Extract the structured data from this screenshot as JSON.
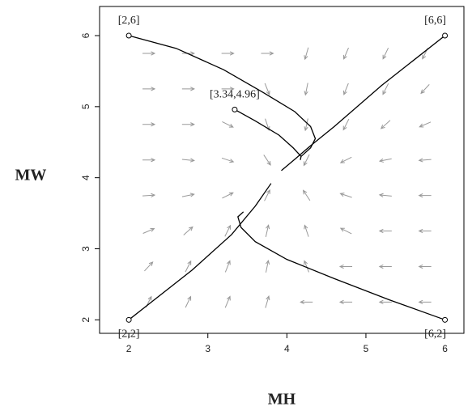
{
  "chart_data": {
    "type": "phase",
    "x_label": "MH",
    "y_label": "MW",
    "xlim": [
      1.63,
      6.24
    ],
    "ylim": [
      1.81,
      6.41
    ],
    "xticks": [
      2,
      3,
      4,
      5,
      6
    ],
    "yticks": [
      2,
      3,
      4,
      5,
      6
    ],
    "field": {
      "color": "#999999",
      "x": [
        2.25,
        2.75,
        3.25,
        3.75,
        4.25,
        4.75,
        5.25,
        5.75
      ],
      "y": [
        5.75,
        5.25,
        4.75,
        4.25,
        3.75,
        3.25,
        2.75,
        2.25
      ],
      "angles": [
        [
          0,
          0,
          0,
          0,
          -106,
          -113,
          -115.5,
          -116.6
        ],
        [
          0,
          0,
          0,
          -68.2,
          -101.3,
          -111.8,
          -116.6,
          -133
        ],
        [
          0,
          0,
          -26.6,
          -71.6,
          -102.5,
          -116.6,
          -138,
          -156.8
        ],
        [
          0,
          -5.7,
          -18.4,
          -56.3,
          -116.6,
          -153.4,
          -168.7,
          -175.9
        ],
        [
          4.1,
          11.3,
          26.6,
          63.4,
          123.7,
          161.6,
          174.3,
          180
        ],
        [
          23.2,
          42,
          63.4,
          77.5,
          108.4,
          153.4,
          180,
          180
        ],
        [
          47,
          63.4,
          68.2,
          78.7,
          111.8,
          180,
          180,
          180
        ],
        [
          63.4,
          64.5,
          67,
          74,
          180,
          180,
          180,
          180
        ]
      ]
    },
    "series": [
      {
        "color": "#000000",
        "x": [
          2,
          2.6,
          3.2,
          3.7,
          4.1,
          4.3,
          4.36,
          4.3,
          4.18
        ],
        "y": [
          6,
          5.82,
          5.52,
          5.2,
          4.93,
          4.72,
          4.55,
          4.42,
          4.3
        ]
      },
      {
        "color": "#000000",
        "x": [
          3.34,
          3.6,
          3.9,
          4.08,
          4.18,
          4.17
        ],
        "y": [
          4.96,
          4.8,
          4.6,
          4.42,
          4.3,
          4.25
        ]
      },
      {
        "color": "#000000",
        "x": [
          6,
          5.2,
          4.6,
          4.3,
          4.1,
          3.93
        ],
        "y": [
          6,
          5.3,
          4.72,
          4.45,
          4.26,
          4.1
        ]
      },
      {
        "color": "#000000",
        "x": [
          2,
          2.8,
          3.3,
          3.6,
          3.8
        ],
        "y": [
          2,
          2.7,
          3.2,
          3.6,
          3.92
        ]
      },
      {
        "color": "#000000",
        "x": [
          6,
          5.3,
          4.6,
          4.0,
          3.6,
          3.42,
          3.38,
          3.45
        ],
        "y": [
          2,
          2.28,
          2.58,
          2.85,
          3.1,
          3.3,
          3.45,
          3.52
        ]
      }
    ],
    "points": [
      {
        "label": "[2,6]",
        "x": 2,
        "y": 6
      },
      {
        "label": "[6,6]",
        "x": 6,
        "y": 6
      },
      {
        "label": "[3.34,4.96]",
        "x": 3.34,
        "y": 4.96
      },
      {
        "label": "[2,2]",
        "x": 2,
        "y": 2
      },
      {
        "label": "[6,2]",
        "x": 6,
        "y": 2
      }
    ]
  }
}
